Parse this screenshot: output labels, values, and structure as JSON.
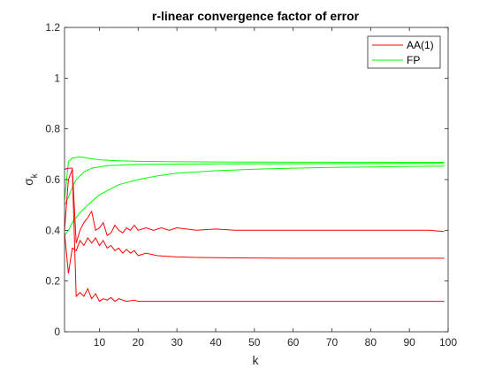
{
  "chart_data": {
    "type": "line",
    "title": "r-linear convergence factor of error",
    "xlabel": "k",
    "ylabel": "σ",
    "ylabel_subscript": "k",
    "xlim": [
      1,
      100
    ],
    "ylim": [
      0,
      1.2
    ],
    "xticks": [
      10,
      20,
      30,
      40,
      50,
      60,
      70,
      80,
      90,
      100
    ],
    "yticks": [
      0,
      0.2,
      0.4,
      0.6,
      0.8,
      1,
      1.2
    ],
    "grid": false,
    "legend_position": "top-right",
    "legend": [
      {
        "label": "AA(1)",
        "color": "#ff0000"
      },
      {
        "label": "FP",
        "color": "#00ff00"
      }
    ],
    "series": [
      {
        "legend": "FP",
        "color": "#00ff00",
        "points": [
          [
            1,
            0.52
          ],
          [
            2,
            0.67
          ],
          [
            3,
            0.685
          ],
          [
            5,
            0.69
          ],
          [
            8,
            0.682
          ],
          [
            10,
            0.678
          ],
          [
            15,
            0.674
          ],
          [
            20,
            0.672
          ],
          [
            30,
            0.67
          ],
          [
            50,
            0.669
          ],
          [
            99,
            0.668
          ]
        ]
      },
      {
        "legend": "FP",
        "color": "#00ff00",
        "points": [
          [
            1,
            0.38
          ],
          [
            2,
            0.4
          ],
          [
            3,
            0.43
          ],
          [
            5,
            0.47
          ],
          [
            7,
            0.5
          ],
          [
            10,
            0.54
          ],
          [
            15,
            0.58
          ],
          [
            20,
            0.6
          ],
          [
            25,
            0.615
          ],
          [
            30,
            0.625
          ],
          [
            40,
            0.635
          ],
          [
            50,
            0.641
          ],
          [
            60,
            0.645
          ],
          [
            70,
            0.648
          ],
          [
            80,
            0.65
          ],
          [
            90,
            0.652
          ],
          [
            99,
            0.653
          ]
        ]
      },
      {
        "legend": "FP",
        "color": "#00ff00",
        "points": [
          [
            1,
            0.5
          ],
          [
            2,
            0.53
          ],
          [
            3,
            0.57
          ],
          [
            4,
            0.6
          ],
          [
            6,
            0.63
          ],
          [
            8,
            0.645
          ],
          [
            12,
            0.655
          ],
          [
            20,
            0.66
          ],
          [
            40,
            0.662
          ],
          [
            99,
            0.663
          ]
        ]
      },
      {
        "legend": "AA(1)",
        "color": "#ff0000",
        "points": [
          [
            1,
            0.64
          ],
          [
            2,
            0.645
          ],
          [
            3,
            0.645
          ],
          [
            4,
            0.35
          ],
          [
            5,
            0.4
          ],
          [
            6,
            0.43
          ],
          [
            7,
            0.45
          ],
          [
            8,
            0.475
          ],
          [
            9,
            0.4
          ],
          [
            10,
            0.41
          ],
          [
            11,
            0.43
          ],
          [
            12,
            0.38
          ],
          [
            13,
            0.39
          ],
          [
            14,
            0.42
          ],
          [
            15,
            0.4
          ],
          [
            16,
            0.39
          ],
          [
            17,
            0.41
          ],
          [
            18,
            0.4
          ],
          [
            19,
            0.42
          ],
          [
            20,
            0.4
          ],
          [
            22,
            0.41
          ],
          [
            24,
            0.4
          ],
          [
            26,
            0.41
          ],
          [
            28,
            0.4
          ],
          [
            30,
            0.41
          ],
          [
            35,
            0.4
          ],
          [
            40,
            0.405
          ],
          [
            45,
            0.4
          ],
          [
            50,
            0.4
          ],
          [
            55,
            0.4
          ],
          [
            60,
            0.4
          ],
          [
            65,
            0.4
          ],
          [
            70,
            0.4
          ],
          [
            75,
            0.4
          ],
          [
            80,
            0.4
          ],
          [
            85,
            0.4
          ],
          [
            90,
            0.4
          ],
          [
            95,
            0.4
          ],
          [
            99,
            0.395
          ]
        ]
      },
      {
        "legend": "AA(1)",
        "color": "#ff0000",
        "points": [
          [
            1,
            0.39
          ],
          [
            2,
            0.23
          ],
          [
            3,
            0.33
          ],
          [
            4,
            0.32
          ],
          [
            5,
            0.36
          ],
          [
            6,
            0.34
          ],
          [
            7,
            0.37
          ],
          [
            8,
            0.35
          ],
          [
            9,
            0.37
          ],
          [
            10,
            0.34
          ],
          [
            11,
            0.36
          ],
          [
            12,
            0.33
          ],
          [
            13,
            0.34
          ],
          [
            14,
            0.32
          ],
          [
            15,
            0.33
          ],
          [
            16,
            0.31
          ],
          [
            17,
            0.325
          ],
          [
            18,
            0.31
          ],
          [
            19,
            0.32
          ],
          [
            20,
            0.3
          ],
          [
            22,
            0.31
          ],
          [
            25,
            0.3
          ],
          [
            30,
            0.295
          ],
          [
            35,
            0.293
          ],
          [
            40,
            0.292
          ],
          [
            50,
            0.291
          ],
          [
            60,
            0.29
          ],
          [
            70,
            0.29
          ],
          [
            80,
            0.29
          ],
          [
            90,
            0.29
          ],
          [
            99,
            0.29
          ]
        ]
      },
      {
        "legend": "AA(1)",
        "color": "#ff0000",
        "points": [
          [
            1,
            0.4
          ],
          [
            2,
            0.6
          ],
          [
            3,
            0.64
          ],
          [
            4,
            0.14
          ],
          [
            5,
            0.155
          ],
          [
            6,
            0.14
          ],
          [
            7,
            0.17
          ],
          [
            8,
            0.13
          ],
          [
            9,
            0.15
          ],
          [
            10,
            0.12
          ],
          [
            11,
            0.13
          ],
          [
            12,
            0.125
          ],
          [
            13,
            0.135
          ],
          [
            14,
            0.12
          ],
          [
            15,
            0.13
          ],
          [
            17,
            0.12
          ],
          [
            19,
            0.125
          ],
          [
            20,
            0.12
          ],
          [
            25,
            0.12
          ],
          [
            30,
            0.12
          ],
          [
            40,
            0.12
          ],
          [
            50,
            0.12
          ],
          [
            60,
            0.12
          ],
          [
            70,
            0.12
          ],
          [
            80,
            0.12
          ],
          [
            90,
            0.12
          ],
          [
            99,
            0.12
          ]
        ]
      }
    ]
  }
}
